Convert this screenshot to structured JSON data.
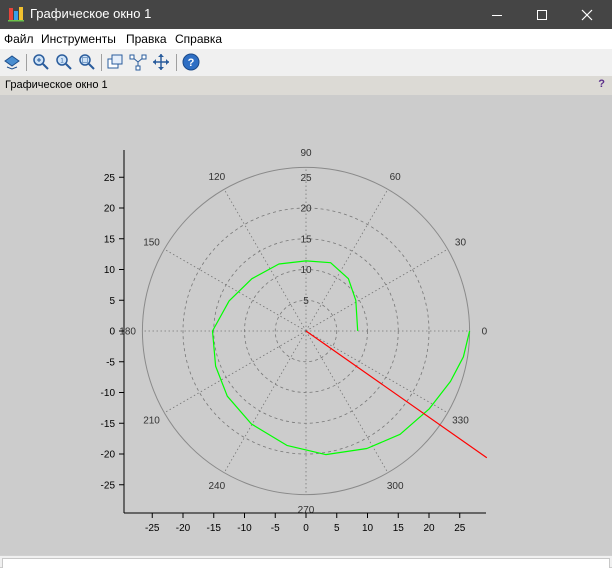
{
  "window": {
    "title": "Графическое окно 1",
    "buttons": [
      "minimize",
      "maximize",
      "close"
    ]
  },
  "menu": {
    "items": [
      "Файл",
      "Инструменты",
      "Правка",
      "Справка"
    ]
  },
  "toolbar": {
    "icons": [
      "rotate-icon",
      "zoom-in-icon",
      "zoom-original-icon",
      "zoom-area-icon",
      "datatip-icon",
      "edit-icon",
      "pan-icon",
      "help-icon"
    ]
  },
  "panel": {
    "title": "Графическое окно 1",
    "help_label": "?"
  },
  "colors": {
    "titlebar": "#454545",
    "spiral": "#00ff00",
    "ray": "#ff0000",
    "plot_background": "#cccccc"
  },
  "chart_data": {
    "type": "polar",
    "title": "",
    "xlabel": "",
    "ylabel": "",
    "xlim": [
      -30,
      30
    ],
    "ylim": [
      -30,
      30
    ],
    "x_ticks": [
      -25,
      -20,
      -15,
      -10,
      -5,
      0,
      5,
      10,
      15,
      20,
      25
    ],
    "y_ticks": [
      25,
      20,
      15,
      10,
      5,
      0,
      -5,
      -10,
      -15,
      -20,
      -25
    ],
    "radial_ticks": [
      5,
      10,
      15,
      20,
      25
    ],
    "grid_circles": [
      5,
      10,
      15,
      20,
      26.6
    ],
    "angle_labels": [
      {
        "angle": 0,
        "label": "0"
      },
      {
        "angle": 30,
        "label": "30"
      },
      {
        "angle": 60,
        "label": "60"
      },
      {
        "angle": 90,
        "label": "90"
      },
      {
        "angle": 120,
        "label": "120"
      },
      {
        "angle": 150,
        "label": "150"
      },
      {
        "angle": 180,
        "label": "180"
      },
      {
        "angle": 210,
        "label": "210"
      },
      {
        "angle": 240,
        "label": "240"
      },
      {
        "angle": 270,
        "label": "270"
      },
      {
        "angle": 300,
        "label": "300"
      },
      {
        "angle": 330,
        "label": "330"
      }
    ],
    "series": [
      {
        "color": "#00ff00",
        "points": [
          [
            8.4,
            0
          ],
          [
            8.1,
            5.0
          ],
          [
            6.9,
            8.5
          ],
          [
            4.0,
            11.1
          ],
          [
            0,
            11.4
          ],
          [
            -4.4,
            10.9
          ],
          [
            -8.8,
            8.5
          ],
          [
            -12.5,
            4.9
          ],
          [
            -15.2,
            0
          ],
          [
            -14.7,
            -5.7
          ],
          [
            -12.8,
            -10.6
          ],
          [
            -8.9,
            -15.1
          ],
          [
            -3.1,
            -18.6
          ],
          [
            3.2,
            -20.1
          ],
          [
            9.9,
            -19.1
          ],
          [
            15.3,
            -16.8
          ],
          [
            20.0,
            -12.7
          ],
          [
            23.5,
            -8.2
          ],
          [
            25.6,
            -4.2
          ],
          [
            26.6,
            0
          ]
        ]
      },
      {
        "color": "#ff0000",
        "points": [
          [
            0,
            0
          ],
          [
            29.4,
            -20.6
          ]
        ]
      }
    ]
  }
}
